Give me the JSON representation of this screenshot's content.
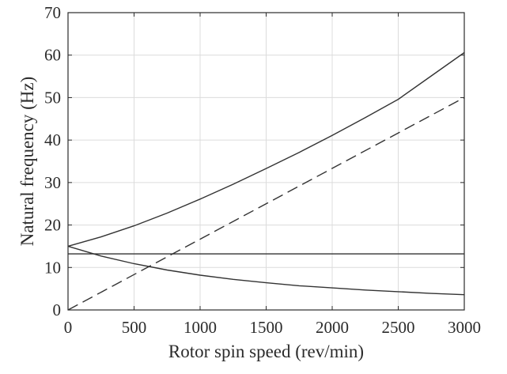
{
  "chart_data": {
    "type": "line",
    "title": "",
    "xlabel": "Rotor spin speed (rev/min)",
    "ylabel": "Natural frequency (Hz)",
    "xlim": [
      0,
      3000
    ],
    "ylim": [
      0,
      70
    ],
    "xticks": [
      0,
      500,
      1000,
      1500,
      2000,
      2500,
      3000
    ],
    "yticks": [
      0,
      10,
      20,
      30,
      40,
      50,
      60,
      70
    ],
    "grid": true,
    "legend": "none",
    "series": [
      {
        "style": "solid",
        "x": [
          0,
          250,
          500,
          750,
          1000,
          1250,
          1500,
          1750,
          2000,
          2250,
          2500,
          2750,
          3000
        ],
        "y": [
          15.0,
          17.2,
          19.8,
          22.8,
          26.1,
          29.6,
          33.3,
          37.1,
          41.1,
          45.3,
          49.6,
          55.1,
          60.6
        ]
      },
      {
        "style": "solid",
        "x": [
          0,
          250,
          500,
          750,
          1000,
          1250,
          1500,
          1750,
          2000,
          2250,
          2500,
          2750,
          3000
        ],
        "y": [
          15.0,
          12.7,
          10.9,
          9.4,
          8.2,
          7.2,
          6.4,
          5.7,
          5.2,
          4.7,
          4.3,
          3.9,
          3.6
        ]
      },
      {
        "style": "solid",
        "x": [
          0,
          3000
        ],
        "y": [
          13.2,
          13.2
        ]
      },
      {
        "style": "dashed",
        "x": [
          0,
          3000
        ],
        "y": [
          0,
          50
        ]
      }
    ],
    "colors": {
      "line": "#333333",
      "grid": "#dcdcdc",
      "frame": "#2b2b2b"
    }
  }
}
